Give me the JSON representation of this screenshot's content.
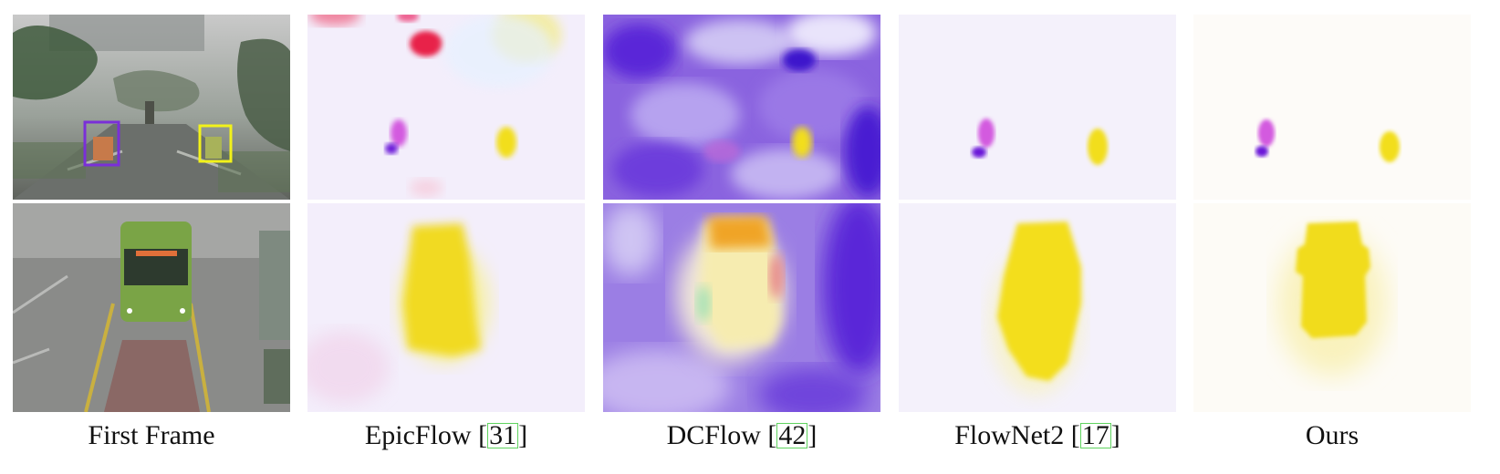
{
  "captions": {
    "first_frame": "First Frame",
    "epicflow": {
      "name": "EpicFlow ",
      "ref": "31"
    },
    "dcflow": {
      "name": "DCFlow ",
      "ref": "42"
    },
    "flownet2": {
      "name": "FlowNet2 ",
      "ref": "17"
    },
    "ours": "Ours"
  },
  "colors": {
    "citation_box": "#5fd35f",
    "purple_box": "#7a2fd8",
    "yellow_box": "#f2f21a",
    "motion_yellow": "#f2de1c",
    "motion_magenta": "#d35adf",
    "motion_violet": "#6a18d8",
    "motion_red": "#e8204a"
  }
}
